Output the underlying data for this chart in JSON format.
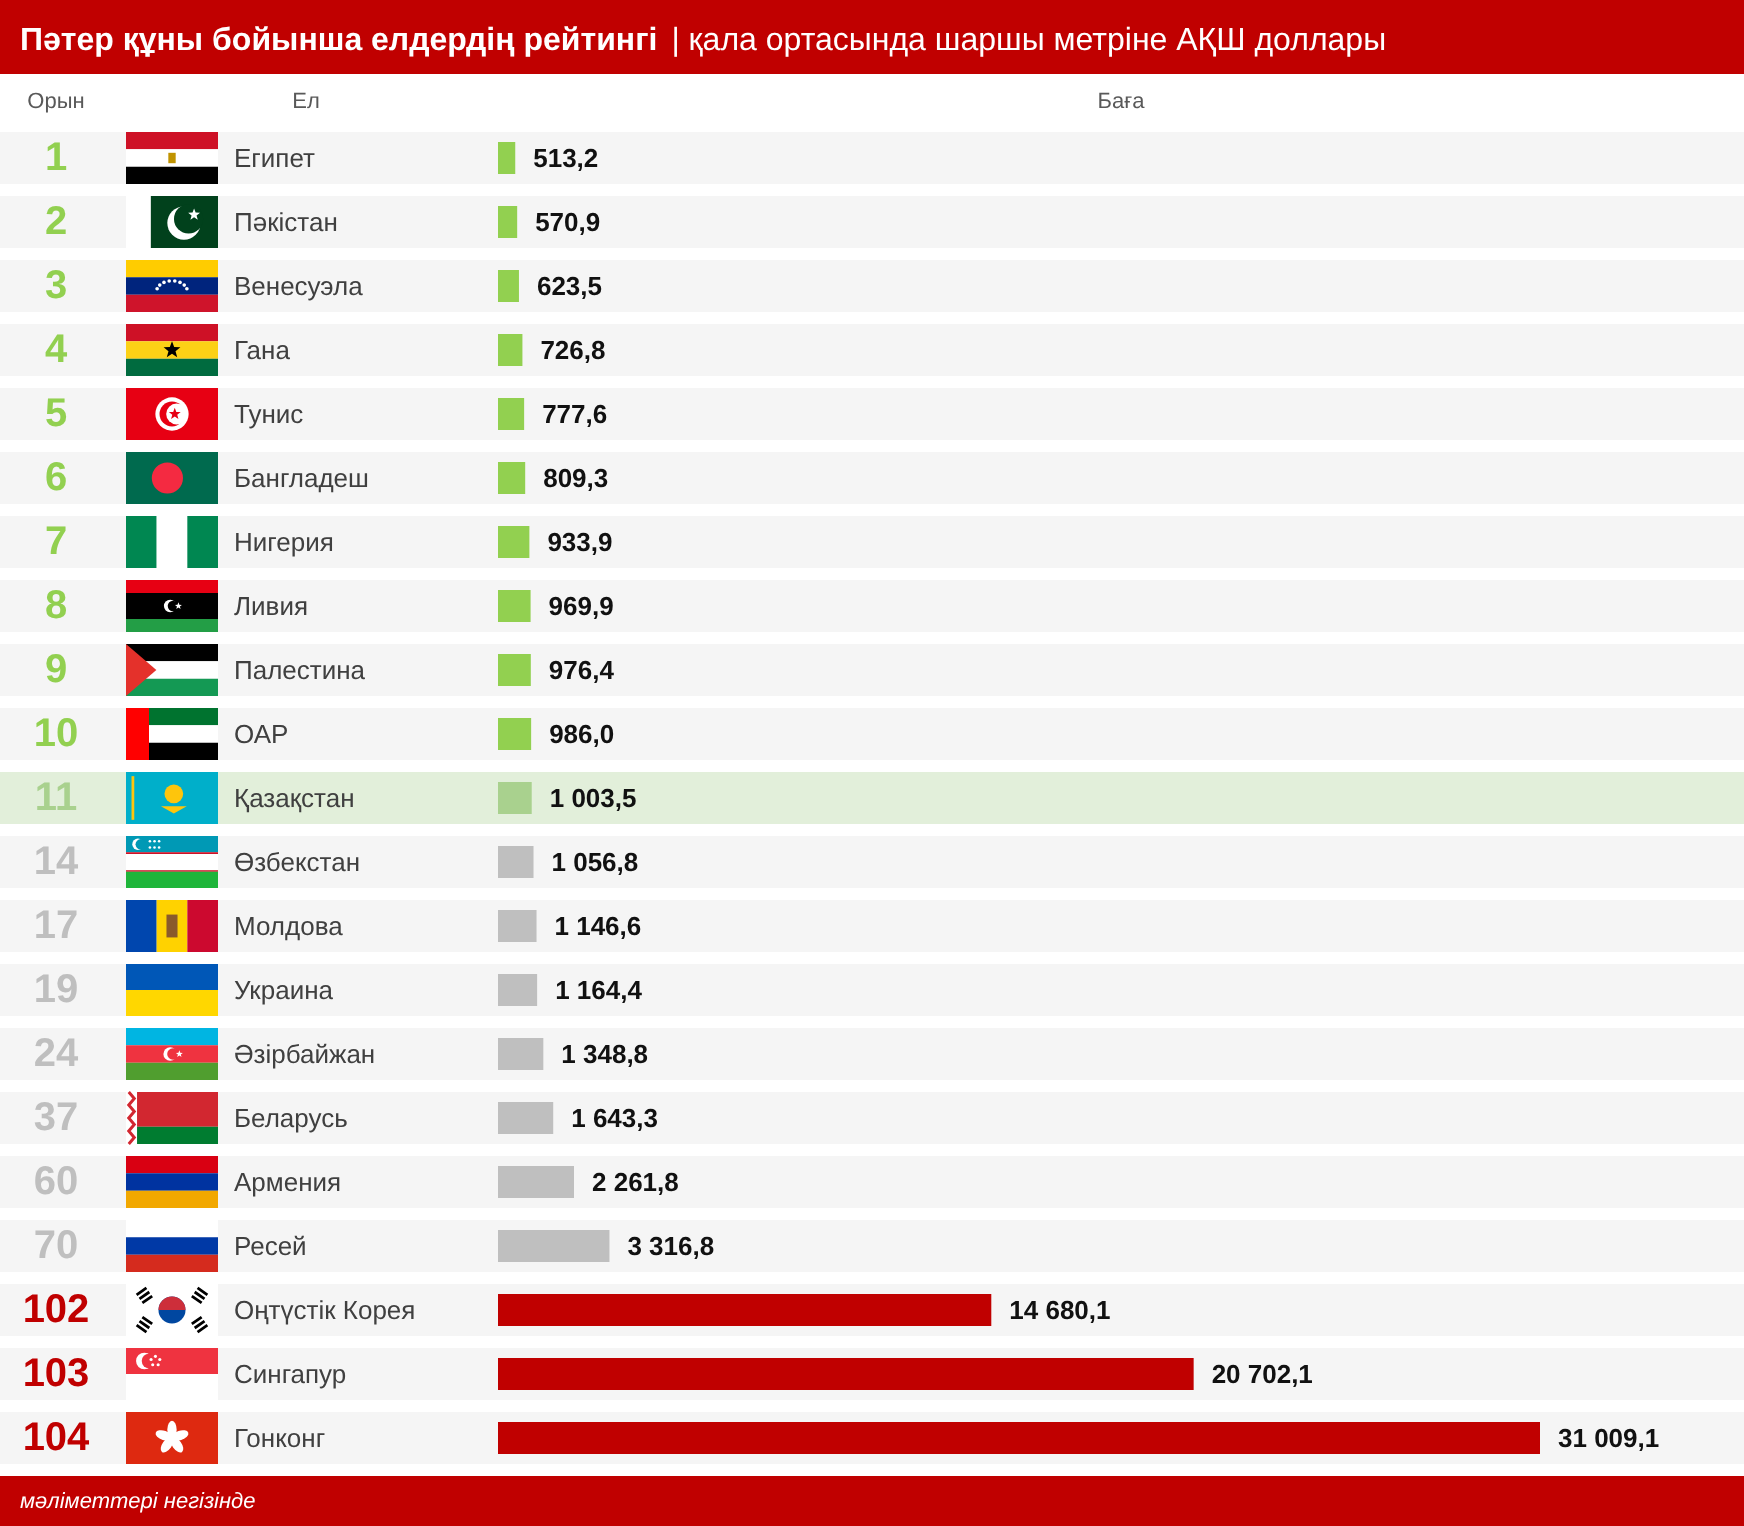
{
  "chart_data": {
    "type": "bar",
    "orientation": "horizontal",
    "title": "Пәтер құны бойынша елдердің рейтингі",
    "subtitle": "| қала ортасында шаршы метріне АҚШ доллары",
    "ylabel": "Ел",
    "xlabel": "Баға",
    "categories": [
      "Египет",
      "Пәкістан",
      "Венесуэла",
      "Гана",
      "Тунис",
      "Бангладеш",
      "Нигерия",
      "Ливия",
      "Палестина",
      "ОАР",
      "Қазақстан",
      "Өзбекстан",
      "Молдова",
      "Украина",
      "Әзірбайжан",
      "Беларусь",
      "Армения",
      "Ресей",
      "Оңтүстік Корея",
      "Сингапур",
      "Гонконг"
    ],
    "values": [
      513.2,
      570.9,
      623.5,
      726.8,
      777.6,
      809.3,
      933.9,
      969.9,
      976.4,
      986.0,
      1003.5,
      1056.8,
      1146.6,
      1164.4,
      1348.8,
      1643.3,
      2261.8,
      3316.8,
      14680.1,
      20702.1,
      31009.1
    ],
    "colors": [
      "#92d050",
      "#92d050",
      "#92d050",
      "#92d050",
      "#92d050",
      "#92d050",
      "#92d050",
      "#92d050",
      "#92d050",
      "#92d050",
      "#a9d18e",
      "#bfbfbf",
      "#bfbfbf",
      "#bfbfbf",
      "#bfbfbf",
      "#bfbfbf",
      "#bfbfbf",
      "#bfbfbf",
      "#c00000",
      "#c00000",
      "#c00000"
    ],
    "value_labels": [
      "513,2",
      "570,9",
      "623,5",
      "726,8",
      "777,6",
      "809,3",
      "933,9",
      "969,9",
      "976,4",
      "986,0",
      "1 003,5",
      "1 056,8",
      "1 146,6",
      "1 164,4",
      "1 348,8",
      "1 643,3",
      "2 261,8",
      "3 316,8",
      "14 680,1",
      "20 702,1",
      "31 009,1"
    ],
    "annotations": [
      "Орын",
      "1",
      "2",
      "3",
      "4",
      "5",
      "6",
      "7",
      "8",
      "9",
      "10",
      "11",
      "14",
      "17",
      "19",
      "24",
      "37",
      "60",
      "70",
      "102",
      "103",
      "104",
      "мәліметтері негізінде"
    ],
    "bands": [
      {
        "axis": "y",
        "from": "Қазақстан",
        "to": "Қазақстан",
        "color": "#e2efda"
      }
    ]
  }
}
